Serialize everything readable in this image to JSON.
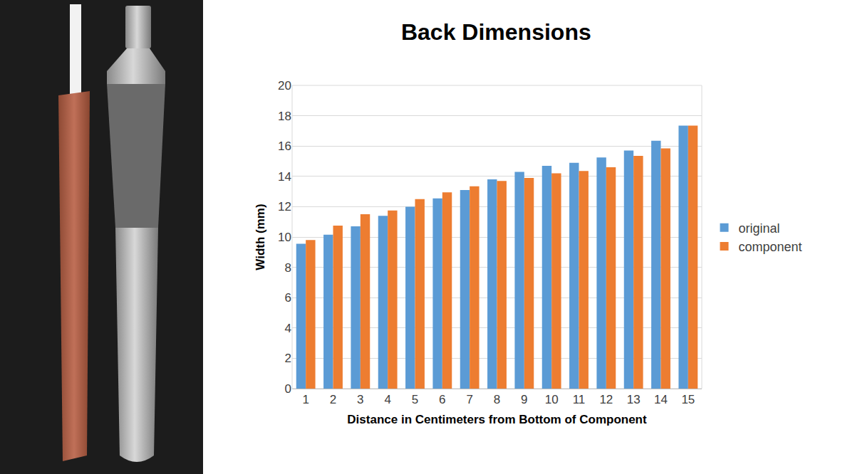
{
  "chart_data": {
    "type": "bar",
    "title": "Back Dimensions",
    "x_label": "Distance in Centimeters from Bottom of Component",
    "y_label": "Width (mm)",
    "categories": [
      "1",
      "2",
      "3",
      "4",
      "5",
      "6",
      "7",
      "8",
      "9",
      "10",
      "11",
      "12",
      "13",
      "14",
      "15"
    ],
    "series": [
      {
        "name": "original",
        "color": "#5b9bd5",
        "values": [
          9.55,
          10.15,
          10.7,
          11.4,
          12.0,
          12.55,
          13.1,
          13.8,
          14.3,
          14.7,
          14.9,
          15.25,
          15.7,
          16.35,
          17.35
        ]
      },
      {
        "name": "component",
        "color": "#ed7d31",
        "values": [
          9.8,
          10.75,
          11.5,
          11.75,
          12.5,
          12.95,
          13.35,
          13.7,
          13.9,
          14.2,
          14.35,
          14.6,
          15.35,
          15.85,
          17.35
        ]
      }
    ],
    "ylim": [
      0,
      20
    ],
    "yticks": [
      0,
      2,
      4,
      6,
      8,
      10,
      12,
      14,
      16,
      18,
      20
    ],
    "grid": true,
    "legend": "right"
  }
}
